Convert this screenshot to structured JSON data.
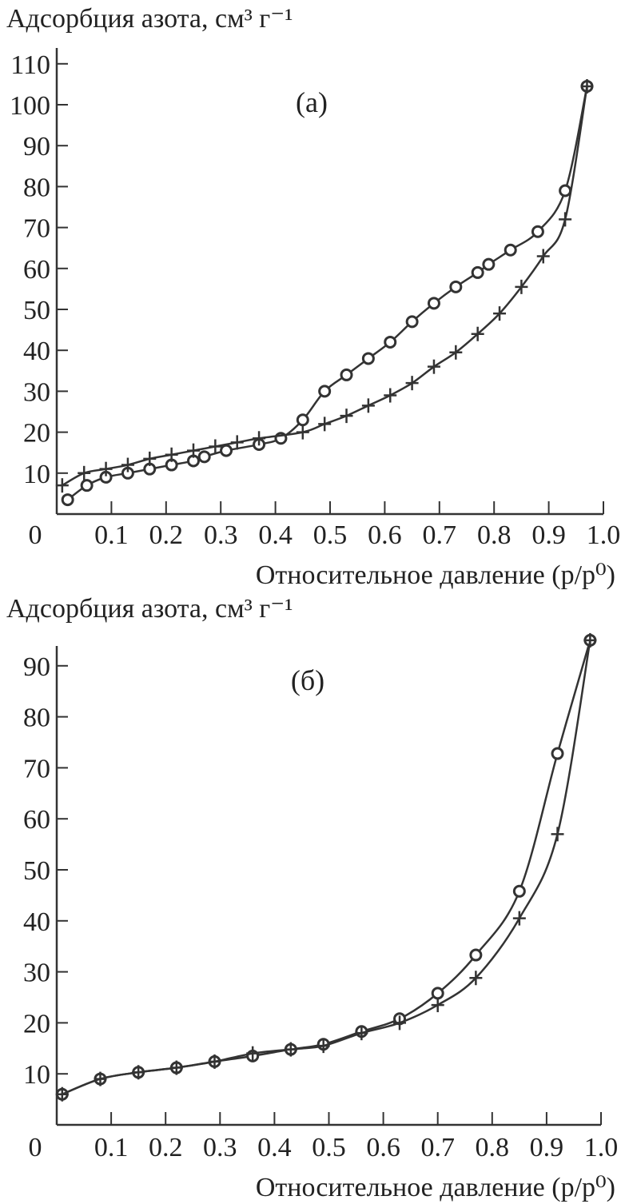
{
  "chart_data": [
    {
      "type": "line",
      "panel_label": "(а)",
      "ylabel": "Адсорбция азота, см³ г⁻¹",
      "xlabel": "Относительное давление (p/p⁰)",
      "xlim": [
        0,
        1.0
      ],
      "ylim": [
        0,
        110
      ],
      "x_ticks": [
        "0",
        "0.1",
        "0.2",
        "0.3",
        "0.4",
        "0.5",
        "0.6",
        "0.7",
        "0.8",
        "0.9",
        "1.0"
      ],
      "y_ticks": [
        10,
        20,
        30,
        40,
        50,
        60,
        70,
        80,
        90,
        100,
        110
      ],
      "grid": false,
      "line_color": "#333333",
      "series": [
        {
          "marker": "circle",
          "x": [
            0.02,
            0.055,
            0.09,
            0.13,
            0.17,
            0.21,
            0.25,
            0.27,
            0.31,
            0.37,
            0.41,
            0.45,
            0.49,
            0.53,
            0.57,
            0.61,
            0.65,
            0.69,
            0.73,
            0.77,
            0.79,
            0.83,
            0.88,
            0.93,
            0.97
          ],
          "y": [
            3.5,
            7,
            9,
            10,
            11,
            12,
            13,
            14,
            15.5,
            17,
            18.5,
            23,
            30,
            34,
            38,
            42,
            47,
            51.5,
            55.5,
            59,
            61,
            64.5,
            69,
            79,
            104.5
          ]
        },
        {
          "marker": "cross",
          "x": [
            0.01,
            0.05,
            0.09,
            0.13,
            0.17,
            0.21,
            0.25,
            0.29,
            0.33,
            0.37,
            0.45,
            0.49,
            0.53,
            0.57,
            0.61,
            0.65,
            0.69,
            0.73,
            0.77,
            0.81,
            0.85,
            0.89,
            0.93,
            0.97
          ],
          "y": [
            7,
            10,
            11,
            12,
            13.5,
            14.5,
            15.5,
            16.5,
            17.5,
            18.5,
            20,
            22,
            24,
            26.5,
            29,
            32,
            36,
            39.5,
            44,
            49,
            55.5,
            63,
            72,
            104.5
          ]
        }
      ]
    },
    {
      "type": "line",
      "panel_label": "(б)",
      "ylabel": "Адсорбция азота, см³ г⁻¹",
      "xlabel": "Относительное давление (p/p⁰)",
      "xlim": [
        0,
        1.0
      ],
      "ylim": [
        0,
        95
      ],
      "x_ticks": [
        "0",
        "0.1",
        "0.2",
        "0.3",
        "0.4",
        "0.5",
        "0.6",
        "0.7",
        "0.8",
        "0.9",
        "1.0"
      ],
      "y_ticks": [
        10,
        20,
        30,
        40,
        50,
        60,
        70,
        80,
        90
      ],
      "grid": false,
      "line_color": "#333333",
      "series": [
        {
          "marker": "circle",
          "x": [
            0.01,
            0.08,
            0.15,
            0.22,
            0.29,
            0.36,
            0.43,
            0.49,
            0.56,
            0.63,
            0.7,
            0.77,
            0.85,
            0.92,
            0.98
          ],
          "y": [
            6,
            9,
            10.3,
            11.2,
            12.4,
            13.5,
            14.8,
            15.8,
            18.3,
            20.8,
            25.8,
            33.3,
            45.8,
            72.8,
            95
          ]
        },
        {
          "marker": "cross",
          "x": [
            0.01,
            0.08,
            0.15,
            0.22,
            0.29,
            0.36,
            0.43,
            0.49,
            0.56,
            0.63,
            0.7,
            0.77,
            0.85,
            0.92,
            0.98
          ],
          "y": [
            6,
            9,
            10.3,
            11.2,
            12.4,
            14,
            14.8,
            15.5,
            18,
            20,
            23.5,
            28.8,
            40.5,
            57,
            95
          ]
        }
      ]
    }
  ]
}
